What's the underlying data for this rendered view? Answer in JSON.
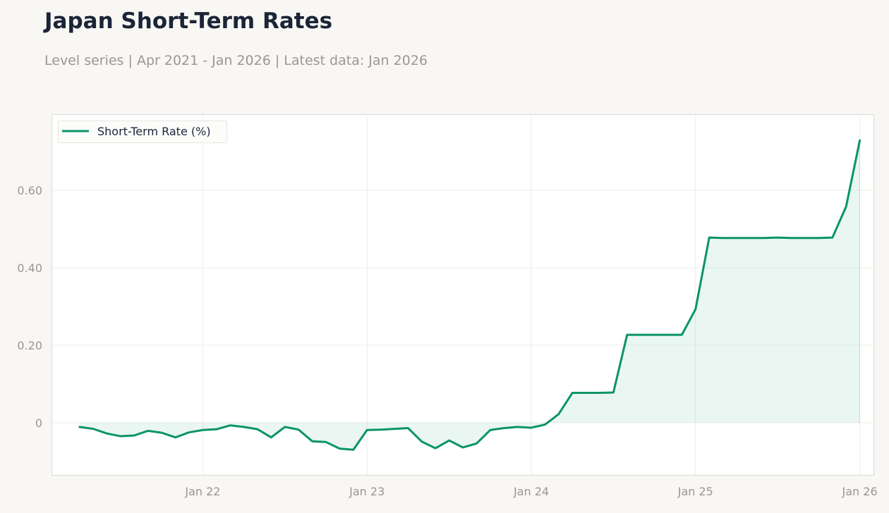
{
  "title": "Japan Short-Term Rates",
  "subtitle": "Level series | Apr 2021 - Jan 2026 | Latest data: Jan 2026",
  "colors": {
    "line": "#0a9467",
    "fill": "#0a9467",
    "text_dark": "#1b2538",
    "text_muted": "#9a9792"
  },
  "chart_data": {
    "type": "area",
    "title": "Japan Short-Term Rates",
    "subtitle": "Level series | Apr 2021 - Jan 2026 | Latest data: Jan 2026",
    "xlabel": "",
    "ylabel": "",
    "x_range": [
      "2021-02",
      "2026-02"
    ],
    "ylim": [
      -0.135,
      0.795
    ],
    "grid": true,
    "legend": "top-left",
    "x_ticks": [
      {
        "date": "2022-01",
        "label": "Jan 22"
      },
      {
        "date": "2023-01",
        "label": "Jan 23"
      },
      {
        "date": "2024-01",
        "label": "Jan 24"
      },
      {
        "date": "2025-01",
        "label": "Jan 25"
      },
      {
        "date": "2026-01",
        "label": "Jan 26"
      }
    ],
    "y_ticks": [
      {
        "value": 0,
        "label": "0"
      },
      {
        "value": 0.2,
        "label": "0.20"
      },
      {
        "value": 0.4,
        "label": "0.40"
      },
      {
        "value": 0.6,
        "label": "0.60"
      }
    ],
    "series": [
      {
        "name": "Short-Term Rate (%)",
        "color": "#0a9467",
        "points": [
          {
            "x": "2021-04",
            "y": -0.011
          },
          {
            "x": "2021-05",
            "y": -0.016
          },
          {
            "x": "2021-06",
            "y": -0.028
          },
          {
            "x": "2021-07",
            "y": -0.035
          },
          {
            "x": "2021-08",
            "y": -0.033
          },
          {
            "x": "2021-09",
            "y": -0.021
          },
          {
            "x": "2021-10",
            "y": -0.026
          },
          {
            "x": "2021-11",
            "y": -0.038
          },
          {
            "x": "2021-12",
            "y": -0.025
          },
          {
            "x": "2022-01",
            "y": -0.019
          },
          {
            "x": "2022-02",
            "y": -0.017
          },
          {
            "x": "2022-03",
            "y": -0.007
          },
          {
            "x": "2022-04",
            "y": -0.011
          },
          {
            "x": "2022-05",
            "y": -0.017
          },
          {
            "x": "2022-06",
            "y": -0.038
          },
          {
            "x": "2022-07",
            "y": -0.011
          },
          {
            "x": "2022-08",
            "y": -0.018
          },
          {
            "x": "2022-09",
            "y": -0.048
          },
          {
            "x": "2022-10",
            "y": -0.05
          },
          {
            "x": "2022-11",
            "y": -0.067
          },
          {
            "x": "2022-12",
            "y": -0.07
          },
          {
            "x": "2023-01",
            "y": -0.019
          },
          {
            "x": "2023-02",
            "y": -0.018
          },
          {
            "x": "2023-03",
            "y": -0.016
          },
          {
            "x": "2023-04",
            "y": -0.014
          },
          {
            "x": "2023-05",
            "y": -0.049
          },
          {
            "x": "2023-06",
            "y": -0.066
          },
          {
            "x": "2023-07",
            "y": -0.046
          },
          {
            "x": "2023-08",
            "y": -0.064
          },
          {
            "x": "2023-09",
            "y": -0.054
          },
          {
            "x": "2023-10",
            "y": -0.019
          },
          {
            "x": "2023-11",
            "y": -0.014
          },
          {
            "x": "2023-12",
            "y": -0.011
          },
          {
            "x": "2024-01",
            "y": -0.013
          },
          {
            "x": "2024-02",
            "y": -0.005
          },
          {
            "x": "2024-03",
            "y": 0.022
          },
          {
            "x": "2024-04",
            "y": 0.077
          },
          {
            "x": "2024-05",
            "y": 0.077
          },
          {
            "x": "2024-06",
            "y": 0.077
          },
          {
            "x": "2024-07",
            "y": 0.078
          },
          {
            "x": "2024-08",
            "y": 0.227
          },
          {
            "x": "2024-09",
            "y": 0.227
          },
          {
            "x": "2024-10",
            "y": 0.227
          },
          {
            "x": "2024-11",
            "y": 0.227
          },
          {
            "x": "2024-12",
            "y": 0.227
          },
          {
            "x": "2025-01",
            "y": 0.293
          },
          {
            "x": "2025-02",
            "y": 0.478
          },
          {
            "x": "2025-03",
            "y": 0.477
          },
          {
            "x": "2025-04",
            "y": 0.477
          },
          {
            "x": "2025-05",
            "y": 0.477
          },
          {
            "x": "2025-06",
            "y": 0.477
          },
          {
            "x": "2025-07",
            "y": 0.478
          },
          {
            "x": "2025-08",
            "y": 0.477
          },
          {
            "x": "2025-09",
            "y": 0.477
          },
          {
            "x": "2025-10",
            "y": 0.477
          },
          {
            "x": "2025-11",
            "y": 0.478
          },
          {
            "x": "2025-12",
            "y": 0.558
          },
          {
            "x": "2026-01",
            "y": 0.729
          }
        ]
      }
    ]
  }
}
